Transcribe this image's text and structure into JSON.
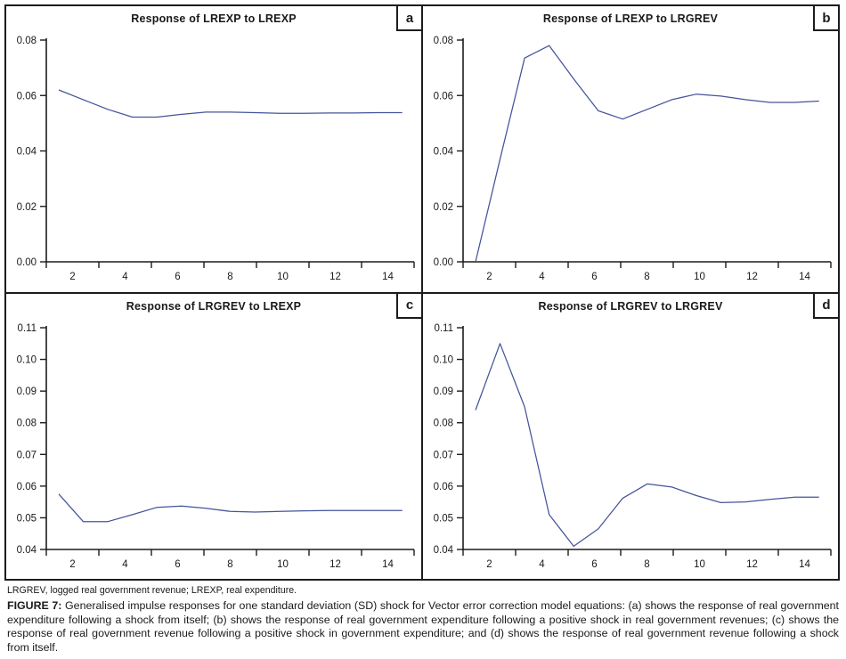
{
  "figure": {
    "note": "LRGREV, logged real government revenue; LREXP, real expenditure.",
    "caption_label": "FIGURE 7:",
    "caption_text": " Generalised impulse responses for one standard deviation (SD) shock for Vector error correction model equations: (a) shows the response of real government expenditure following a shock from itself; (b) shows the response of real government expenditure following a positive shock in real government revenues; (c) shows the response of real government revenue following a positive shock in government expenditure; and (d) shows the response of real government revenue following a shock from itself."
  },
  "style": {
    "line_color": "#44549a",
    "axis_color": "#1c1c1c",
    "text_color": "#1a1a1a"
  },
  "chart_data": [
    {
      "type": "line",
      "title": "Response of LREXP to LREXP",
      "corner_label": "a",
      "x": [
        1,
        2,
        3,
        4,
        5,
        6,
        7,
        8,
        9,
        10,
        11,
        12,
        13,
        14,
        15
      ],
      "values": [
        0.062,
        0.0585,
        0.055,
        0.0522,
        0.0522,
        0.0532,
        0.054,
        0.054,
        0.0538,
        0.0536,
        0.0536,
        0.0537,
        0.0537,
        0.0538,
        0.0538
      ],
      "ylim": [
        0.0,
        0.08
      ],
      "ytick_labels": [
        "0.00",
        "0.02",
        "0.04",
        "0.06",
        "0.08"
      ],
      "xtick_labels": [
        "2",
        "4",
        "6",
        "8",
        "10",
        "12",
        "14"
      ],
      "grid": "off",
      "legend": "none"
    },
    {
      "type": "line",
      "title": "Response of LREXP to LRGREV",
      "corner_label": "b",
      "x": [
        1,
        2,
        3,
        4,
        5,
        6,
        7,
        8,
        9,
        10,
        11,
        12,
        13,
        14,
        15
      ],
      "values": [
        0.0,
        0.037,
        0.0735,
        0.078,
        0.066,
        0.0545,
        0.0515,
        0.055,
        0.0585,
        0.0605,
        0.0598,
        0.0585,
        0.0575,
        0.0575,
        0.058
      ],
      "ylim": [
        0.0,
        0.08
      ],
      "ytick_labels": [
        "0.00",
        "0.02",
        "0.04",
        "0.06",
        "0.08"
      ],
      "xtick_labels": [
        "2",
        "4",
        "6",
        "8",
        "10",
        "12",
        "14"
      ],
      "grid": "off",
      "legend": "none"
    },
    {
      "type": "line",
      "title": "Response of LRGREV to LREXP",
      "corner_label": "c",
      "x": [
        1,
        2,
        3,
        4,
        5,
        6,
        7,
        8,
        9,
        10,
        11,
        12,
        13,
        14,
        15
      ],
      "values": [
        0.0575,
        0.0488,
        0.0488,
        0.051,
        0.0533,
        0.0537,
        0.053,
        0.052,
        0.0518,
        0.052,
        0.0522,
        0.0523,
        0.0523,
        0.0523,
        0.0523
      ],
      "ylim": [
        0.04,
        0.11
      ],
      "ytick_labels": [
        "0.04",
        "0.05",
        "0.06",
        "0.07",
        "0.08",
        "0.09",
        "0.10",
        "0.11"
      ],
      "xtick_labels": [
        "2",
        "4",
        "6",
        "8",
        "10",
        "12",
        "14"
      ],
      "grid": "off",
      "legend": "none"
    },
    {
      "type": "line",
      "title": "Response of LRGREV to LRGREV",
      "corner_label": "d",
      "x": [
        1,
        2,
        3,
        4,
        5,
        6,
        7,
        8,
        9,
        10,
        11,
        12,
        13,
        14,
        15
      ],
      "values": [
        0.084,
        0.105,
        0.085,
        0.051,
        0.041,
        0.0465,
        0.0562,
        0.0607,
        0.0597,
        0.057,
        0.0548,
        0.055,
        0.0558,
        0.0565,
        0.0565
      ],
      "ylim": [
        0.04,
        0.11
      ],
      "ytick_labels": [
        "0.04",
        "0.05",
        "0.06",
        "0.07",
        "0.08",
        "0.09",
        "0.10",
        "0.11"
      ],
      "xtick_labels": [
        "2",
        "4",
        "6",
        "8",
        "10",
        "12",
        "14"
      ],
      "grid": "off",
      "legend": "none"
    }
  ]
}
